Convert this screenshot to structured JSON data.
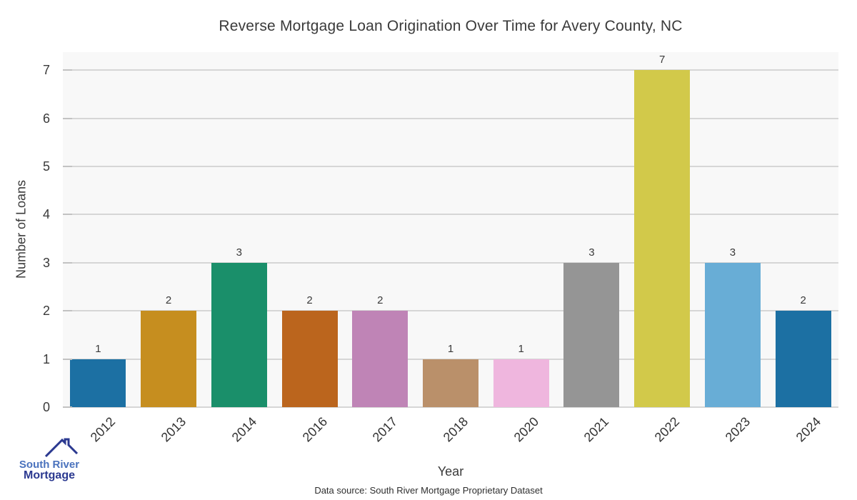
{
  "chart_data": {
    "type": "bar",
    "title": "Reverse Mortgage Loan Origination Over Time for Avery County, NC",
    "categories": [
      "2012",
      "2013",
      "2014",
      "2016",
      "2017",
      "2018",
      "2020",
      "2021",
      "2022",
      "2023",
      "2024"
    ],
    "values": [
      1,
      2,
      3,
      2,
      2,
      1,
      1,
      3,
      7,
      3,
      2
    ],
    "bar_colors": [
      "#1c70a3",
      "#c68e1f",
      "#1a8f6a",
      "#bb651d",
      "#bf84b6",
      "#ba906a",
      "#efb6de",
      "#959595",
      "#d2c94a",
      "#68add6",
      "#1c70a3"
    ],
    "xlabel": "Year",
    "ylabel": "Number of Loans",
    "ylim": [
      0,
      7
    ],
    "yticks": [
      0,
      1,
      2,
      3,
      4,
      5,
      6,
      7
    ],
    "grid": true,
    "legend": false,
    "plot_background": "#f8f8f8",
    "gridline_color": "#d6d6d6",
    "tick_color": "#c2c2c2",
    "text_color": "#3a3a3a"
  },
  "branding": {
    "logo_line1": "South River",
    "logo_line2": "Mortgage",
    "logo_color_primary": "#4a72bd",
    "logo_color_secondary": "#2b3990"
  },
  "footer": {
    "data_source": "Data source: South River Mortgage Proprietary Dataset"
  }
}
